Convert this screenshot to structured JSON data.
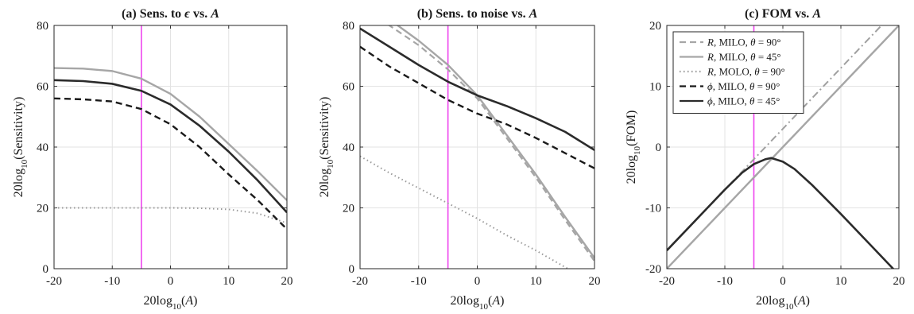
{
  "chart_data": [
    {
      "type": "line",
      "title": "(a) Sens. to ϵ vs. A",
      "xlabel": "20log10(A)",
      "ylabel": "20log10(Sensitivity)",
      "xlim": [
        -20,
        20
      ],
      "ylim": [
        0,
        80
      ],
      "xticks": [
        "-20",
        "-10",
        "0",
        "10",
        "20"
      ],
      "yticks": [
        "0",
        "20",
        "40",
        "60",
        "80"
      ],
      "grid": true,
      "vline_x": -5,
      "series": [
        {
          "x": [
            -20,
            -15,
            -10,
            -5,
            0,
            5,
            10,
            15,
            20
          ],
          "values": [
            66,
            65.8,
            65,
            62.5,
            57.5,
            50,
            41,
            32,
            22.5
          ],
          "color": "#a6a6a6",
          "dash": "solid",
          "width": 2.4
        },
        {
          "x": [
            -20,
            -15,
            -10,
            -5,
            0,
            5,
            10,
            15,
            20
          ],
          "values": [
            20,
            20,
            20,
            20,
            20,
            19.9,
            19.5,
            18.2,
            15
          ],
          "color": "#9a9a9a",
          "dash": "dot",
          "width": 2
        },
        {
          "x": [
            -20,
            -15,
            -10,
            -5,
            0,
            5,
            10,
            15,
            20
          ],
          "values": [
            56,
            55.7,
            55,
            52.5,
            47.5,
            40,
            31,
            22.5,
            13
          ],
          "color": "#1a1a1a",
          "dash": "dash",
          "width": 2.4
        },
        {
          "x": [
            -20,
            -15,
            -10,
            -5,
            0,
            5,
            10,
            15,
            20
          ],
          "values": [
            62,
            61.7,
            60.8,
            58.5,
            54,
            47,
            38.5,
            29,
            18.5
          ],
          "color": "#2b2b2b",
          "dash": "solid",
          "width": 2.6
        }
      ]
    },
    {
      "type": "line",
      "title": "(b) Sens. to noise vs. A",
      "xlabel": "20log10(A)",
      "ylabel": "20log10(Sensitivity)",
      "xlim": [
        -20,
        20
      ],
      "ylim": [
        0,
        80
      ],
      "xticks": [
        "-20",
        "-10",
        "0",
        "10",
        "20"
      ],
      "yticks": [
        "0",
        "20",
        "40",
        "60",
        "80"
      ],
      "grid": true,
      "vline_x": -5,
      "series": [
        {
          "x": [
            -20,
            -15,
            -10,
            -5,
            0,
            5,
            10,
            15,
            20
          ],
          "values": [
            85,
            80,
            73.5,
            65.5,
            56,
            43,
            30,
            16,
            2.5
          ],
          "color": "#a6a6a6",
          "dash": "dash",
          "width": 2.2
        },
        {
          "x": [
            -20,
            -15,
            -10,
            -5,
            0,
            5,
            10,
            15,
            20
          ],
          "values": [
            88,
            82,
            75,
            67,
            57,
            44,
            31,
            17,
            3.5
          ],
          "color": "#a6a6a6",
          "dash": "solid",
          "width": 2.4
        },
        {
          "x": [
            -20,
            -15,
            -10,
            -5,
            0,
            5,
            10,
            15,
            20
          ],
          "values": [
            37,
            31.5,
            26.5,
            21.5,
            16.5,
            11,
            6,
            0.5,
            -5
          ],
          "color": "#9a9a9a",
          "dash": "dot",
          "width": 2
        },
        {
          "x": [
            -20,
            -15,
            -10,
            -5,
            0,
            5,
            10,
            15,
            20
          ],
          "values": [
            73,
            66.5,
            61,
            55.5,
            51,
            47.5,
            43,
            38,
            33
          ],
          "color": "#1a1a1a",
          "dash": "dash",
          "width": 2.4
        },
        {
          "x": [
            -20,
            -15,
            -10,
            -5,
            0,
            5,
            10,
            15,
            20
          ],
          "values": [
            79,
            73,
            67,
            61.5,
            57,
            53.5,
            49.5,
            45,
            39
          ],
          "color": "#2b2b2b",
          "dash": "solid",
          "width": 2.6
        }
      ]
    },
    {
      "type": "line",
      "title": "(c) FOM vs. A",
      "xlabel": "20log10(A)",
      "ylabel": "20log10(FOM)",
      "xlim": [
        -20,
        20
      ],
      "ylim": [
        -20,
        20
      ],
      "xticks": [
        "-20",
        "-10",
        "0",
        "10",
        "20"
      ],
      "yticks": [
        "-20",
        "-10",
        "0",
        "10",
        "20"
      ],
      "grid": true,
      "vline_x": -5,
      "legend": {
        "placement": "top-left",
        "entries": [
          {
            "var": "R",
            "rest": ", MILO, ",
            "theta": "θ",
            "angle": " = 90°",
            "color": "#a6a6a6",
            "dash": "dash"
          },
          {
            "var": "R",
            "rest": ", MILO, ",
            "theta": "θ",
            "angle": " = 45°",
            "color": "#a6a6a6",
            "dash": "solid"
          },
          {
            "var": "R",
            "rest": ", MOLO, ",
            "theta": "θ",
            "angle": " = 90°",
            "color": "#9a9a9a",
            "dash": "dot"
          },
          {
            "var": "ϕ",
            "rest": ", MILO, ",
            "theta": "θ",
            "angle": " = 90°",
            "color": "#1a1a1a",
            "dash": "dash"
          },
          {
            "var": "ϕ",
            "rest": ", MILO, ",
            "theta": "θ",
            "angle": " = 45°",
            "color": "#2b2b2b",
            "dash": "solid"
          }
        ]
      },
      "series": [
        {
          "x": [
            -20,
            -15,
            -10,
            -5,
            0,
            5,
            10,
            15,
            20
          ],
          "values": [
            -17,
            -12,
            -7,
            -2,
            3,
            8,
            13,
            18,
            23
          ],
          "color": "#a0a0a0",
          "dash": "dashdot",
          "width": 2
        },
        {
          "x": [
            -20,
            -15,
            -10,
            -5,
            0,
            5,
            10,
            15,
            20
          ],
          "values": [
            -20,
            -15,
            -10,
            -5,
            0,
            5,
            10,
            15,
            20
          ],
          "color": "#a6a6a6",
          "dash": "solid",
          "width": 2.4
        },
        {
          "x": [
            -20,
            -15,
            -10,
            -7,
            -5,
            -3,
            -2,
            0,
            2,
            5,
            10,
            15,
            20
          ],
          "values": [
            -17,
            -12,
            -7,
            -4.2,
            -2.8,
            -2,
            -1.8,
            -2.4,
            -3.6,
            -6.2,
            -11,
            -16,
            -21
          ],
          "color": "#2b2b2b",
          "dash": "solid",
          "width": 2.6
        }
      ]
    }
  ]
}
